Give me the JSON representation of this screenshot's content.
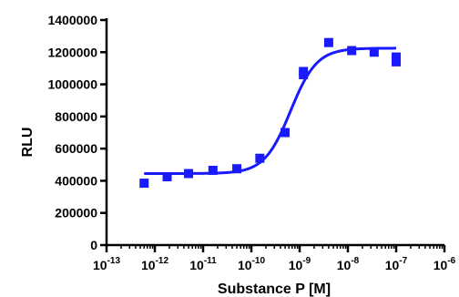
{
  "chart_data": {
    "type": "scatter",
    "xlabel": "Substance P [M]",
    "ylabel": "RLU",
    "x_scale": "log",
    "xlim": [
      1e-13,
      1e-06
    ],
    "ylim": [
      0,
      1400000
    ],
    "x_ticks": [
      {
        "base": "10",
        "exp": "-13"
      },
      {
        "base": "10",
        "exp": "-12"
      },
      {
        "base": "10",
        "exp": "-11"
      },
      {
        "base": "10",
        "exp": "-10"
      },
      {
        "base": "10",
        "exp": "-9"
      },
      {
        "base": "10",
        "exp": "-8"
      },
      {
        "base": "10",
        "exp": "-7"
      },
      {
        "base": "10",
        "exp": "-6"
      }
    ],
    "y_ticks": [
      "0",
      "200000",
      "400000",
      "600000",
      "800000",
      "1000000",
      "1200000",
      "1400000"
    ],
    "grid": false,
    "color": "#1a1aff",
    "series": [
      {
        "points": [
          {
            "x": 6e-13,
            "y": 385000
          },
          {
            "x": 1.8e-12,
            "y": 425000
          },
          {
            "x": 5e-12,
            "y": 445000
          },
          {
            "x": 1.6e-11,
            "y": 465000
          },
          {
            "x": 5e-11,
            "y": 475000
          },
          {
            "x": 1.5e-10,
            "y": 540000
          },
          {
            "x": 5e-10,
            "y": 700000
          },
          {
            "x": 1.2e-09,
            "y": 1060000
          },
          {
            "x": 1.2e-09,
            "y": 1080000
          },
          {
            "x": 4e-09,
            "y": 1260000
          },
          {
            "x": 1.2e-08,
            "y": 1210000
          },
          {
            "x": 3.5e-08,
            "y": 1200000
          },
          {
            "x": 1e-07,
            "y": 1140000
          },
          {
            "x": 1e-07,
            "y": 1170000
          }
        ],
        "fit": {
          "type": "sigmoid",
          "bottom": 445000,
          "top": 1225000,
          "ec50": 6.5e-10,
          "hill": 1.6,
          "x_range": [
            6e-13,
            1e-07
          ]
        }
      }
    ]
  }
}
